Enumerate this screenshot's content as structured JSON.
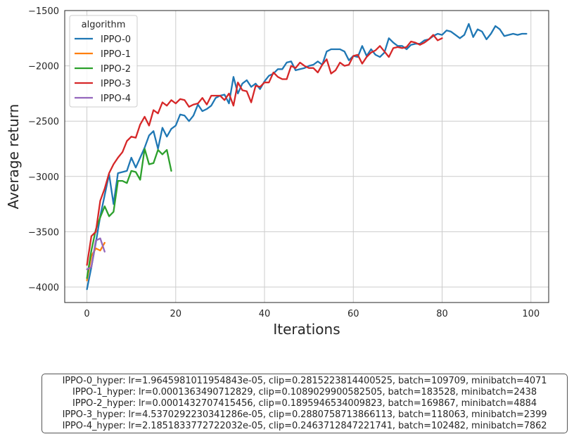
{
  "chart_data": {
    "type": "line",
    "title": "",
    "xlabel": "Iterations",
    "ylabel": "Average return",
    "xlim": [
      -5,
      104
    ],
    "ylim": [
      -4140,
      -1500
    ],
    "x_ticks": [
      0,
      20,
      40,
      60,
      80,
      100
    ],
    "y_ticks": [
      -4000,
      -3500,
      -3000,
      -2500,
      -2000,
      -1500
    ],
    "x_tick_labels": [
      "0",
      "20",
      "40",
      "60",
      "80",
      "100"
    ],
    "y_tick_labels": [
      "−4000",
      "−3500",
      "−3000",
      "−2500",
      "−2000",
      "−1500"
    ],
    "grid": true,
    "legend": {
      "title": "algorithm",
      "placement": "top-left"
    },
    "series": [
      {
        "name": "IPPO-0",
        "color": "#1f77b4",
        "values": [
          -4020,
          -3820,
          -3600,
          -3360,
          -3170,
          -2980,
          -3250,
          -2970,
          -2960,
          -2950,
          -2830,
          -2920,
          -2830,
          -2740,
          -2630,
          -2590,
          -2750,
          -2560,
          -2640,
          -2570,
          -2540,
          -2440,
          -2450,
          -2500,
          -2450,
          -2350,
          -2410,
          -2390,
          -2360,
          -2290,
          -2270,
          -2260,
          -2340,
          -2100,
          -2250,
          -2160,
          -2130,
          -2190,
          -2160,
          -2210,
          -2140,
          -2090,
          -2070,
          -2030,
          -2030,
          -1970,
          -1960,
          -2040,
          -2030,
          -2020,
          -2000,
          -1990,
          -1960,
          -1990,
          -1870,
          -1850,
          -1850,
          -1850,
          -1870,
          -1950,
          -1910,
          -1920,
          -1820,
          -1910,
          -1850,
          -1900,
          -1920,
          -1880,
          -1750,
          -1790,
          -1820,
          -1820,
          -1850,
          -1810,
          -1800,
          -1800,
          -1770,
          -1760,
          -1730,
          -1710,
          -1720,
          -1680,
          -1690,
          -1720,
          -1750,
          -1720,
          -1620,
          -1740,
          -1670,
          -1690,
          -1760,
          -1710,
          -1640,
          -1670,
          -1730,
          -1720,
          -1710,
          -1720,
          -1710,
          -1710
        ]
      },
      {
        "name": "IPPO-1",
        "color": "#ff7f0e",
        "values": [
          -3940,
          -3720,
          -3650,
          -3670,
          -3600
        ]
      },
      {
        "name": "IPPO-2",
        "color": "#2ca02c",
        "values": [
          -3920,
          -3670,
          -3480,
          -3370,
          -3270,
          -3360,
          -3320,
          -3040,
          -3040,
          -3060,
          -2950,
          -2960,
          -3030,
          -2750,
          -2890,
          -2880,
          -2760,
          -2800,
          -2760,
          -2950
        ]
      },
      {
        "name": "IPPO-3",
        "color": "#d62728",
        "values": [
          -3800,
          -3540,
          -3500,
          -3220,
          -3110,
          -2970,
          -2890,
          -2830,
          -2780,
          -2680,
          -2640,
          -2650,
          -2530,
          -2460,
          -2540,
          -2400,
          -2430,
          -2330,
          -2360,
          -2310,
          -2340,
          -2300,
          -2310,
          -2370,
          -2350,
          -2340,
          -2290,
          -2350,
          -2270,
          -2270,
          -2270,
          -2310,
          -2250,
          -2360,
          -2150,
          -2220,
          -2230,
          -2330,
          -2180,
          -2190,
          -2150,
          -2150,
          -2060,
          -2100,
          -2120,
          -2120,
          -2000,
          -2020,
          -1970,
          -2000,
          -2020,
          -2020,
          -2060,
          -1990,
          -1940,
          -2070,
          -2040,
          -1970,
          -2000,
          -1990,
          -1910,
          -1900,
          -1980,
          -1920,
          -1880,
          -1860,
          -1820,
          -1870,
          -1920,
          -1840,
          -1830,
          -1840,
          -1830,
          -1780,
          -1790,
          -1810,
          -1790,
          -1760,
          -1720,
          -1770,
          -1750
        ]
      },
      {
        "name": "IPPO-4",
        "color": "#9467bd",
        "values": [
          -3840,
          -3820,
          -3580,
          -3560,
          -3680
        ]
      }
    ]
  },
  "hyper_text": [
    "IPPO-0_hyper: lr=1.9645981011954843e-05, clip=0.2815223814400525, batch=109709, minibatch=4071",
    "IPPO-1_hyper: lr=0.0001363490712829, clip=0.1089029900582505, batch=183528, minibatch=2438",
    "IPPO-2_hyper: lr=0.0001432707415456, clip=0.1895946534009823, batch=169867, minibatch=4884",
    "IPPO-3_hyper: lr=4.5370292230341286e-05, clip=0.2880758713866113, batch=118063, minibatch=2399",
    "IPPO-4_hyper: lr=2.1851833772722032e-05, clip=0.2463712847221741, batch=102482, minibatch=7862"
  ]
}
